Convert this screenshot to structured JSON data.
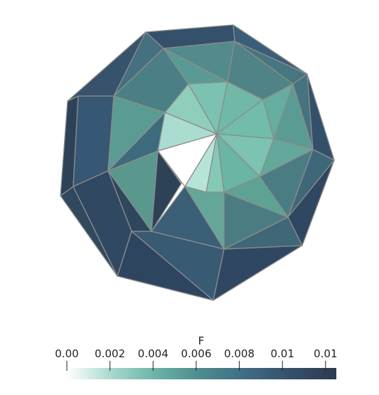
{
  "colorbar": {
    "title": "F",
    "tick_labels": [
      "0.00",
      "0.002",
      "0.004",
      "0.006",
      "0.008",
      "0.01",
      "0.01"
    ],
    "tick_values": [
      0,
      0.002,
      0.004,
      0.006,
      0.008,
      0.01,
      0.012
    ],
    "range": [
      0,
      0.0125
    ],
    "colormap": [
      "#ffffff",
      "#a6d7cc",
      "#6ab3a6",
      "#4d8a8e",
      "#3e6b82",
      "#35506a",
      "#2c3a4e"
    ]
  },
  "colors": {
    "edge": "#8c8c8c",
    "background": "#ffffff"
  }
}
